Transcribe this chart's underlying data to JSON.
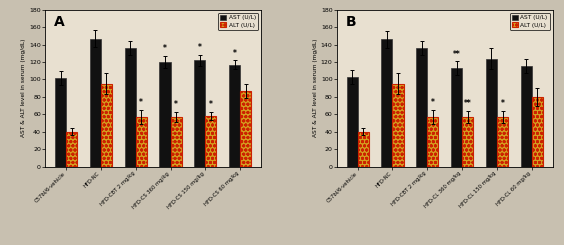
{
  "panel_A": {
    "label": "A",
    "categories": [
      "C57bl/6-vehicle",
      "HFD-NC",
      "HFD-CBT 2 mg/kg",
      "HFD-CS 360 mg/kg",
      "HFD-CS 150 mg/kg",
      "HFD-CS 60 mg/kg"
    ],
    "AST_values": [
      102,
      147,
      136,
      120,
      122,
      117
    ],
    "AST_errors": [
      8,
      10,
      8,
      7,
      6,
      5
    ],
    "ALT_values": [
      40,
      95,
      57,
      57,
      58,
      87
    ],
    "ALT_errors": [
      4,
      12,
      8,
      6,
      5,
      8
    ],
    "AST_sig": [
      "",
      "",
      "",
      "*",
      "*",
      "*"
    ],
    "ALT_sig": [
      "",
      "",
      "*",
      "*",
      "*",
      ""
    ]
  },
  "panel_B": {
    "label": "B",
    "categories": [
      "C57bl/6-vehicle",
      "HFD-NC",
      "HFD-CBT 2 mg/kg",
      "HFD-CL 360 mg/kg",
      "HFD-CL 150 mg/kg",
      "HFD-CL 60 mg/kg"
    ],
    "AST_values": [
      103,
      146,
      136,
      113,
      124,
      116
    ],
    "AST_errors": [
      8,
      10,
      8,
      8,
      12,
      8
    ],
    "ALT_values": [
      40,
      95,
      57,
      57,
      57,
      80
    ],
    "ALT_errors": [
      4,
      12,
      8,
      7,
      7,
      10
    ],
    "AST_sig": [
      "",
      "",
      "",
      "**",
      "",
      ""
    ],
    "ALT_sig": [
      "",
      "",
      "*",
      "**",
      "*",
      ""
    ]
  },
  "ylabel": "AST & ALT level in serum (mg/dL)",
  "ylim": [
    0,
    180
  ],
  "yticks": [
    0,
    20,
    40,
    60,
    80,
    100,
    120,
    140,
    160,
    180
  ],
  "AST_color": "#111111",
  "ALT_color_face": "#d4a020",
  "ALT_hatch_color": "#8B6000",
  "ALT_color_edge": "#cc2200",
  "legend_AST": "AST (U/L)",
  "legend_ALT": "ALT (U/L)",
  "bar_width": 0.32,
  "bg_color": "#c8c0b0",
  "plot_bg_color": "#e8e0d0"
}
